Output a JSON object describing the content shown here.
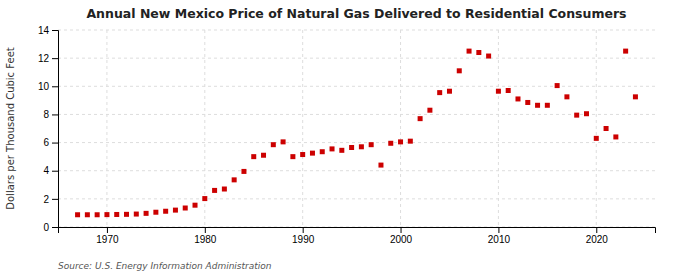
{
  "chart_data": {
    "type": "scatter",
    "title": "Annual New Mexico Price of Natural Gas Delivered to Residential Consumers",
    "ylabel": "Dollars per Thousand Cubic Feet",
    "annotations": [
      "Source: U.S. Energy Information Administration"
    ],
    "color": "#cc0000",
    "marker": "square",
    "grid": true,
    "xlim": [
      1965,
      2026
    ],
    "ylim": [
      0,
      14
    ],
    "xticks": [
      1970,
      1980,
      1990,
      2000,
      2010,
      2020
    ],
    "yticks": [
      0,
      2,
      4,
      6,
      8,
      10,
      12,
      14
    ],
    "x": [
      1967,
      1968,
      1969,
      1970,
      1971,
      1972,
      1973,
      1974,
      1975,
      1976,
      1977,
      1978,
      1979,
      1980,
      1981,
      1982,
      1983,
      1984,
      1985,
      1986,
      1987,
      1988,
      1989,
      1990,
      1991,
      1992,
      1993,
      1994,
      1995,
      1996,
      1997,
      1998,
      1999,
      2000,
      2001,
      2002,
      2003,
      2004,
      2005,
      2006,
      2007,
      2008,
      2009,
      2010,
      2011,
      2012,
      2013,
      2014,
      2015,
      2016,
      2017,
      2018,
      2019,
      2020,
      2021,
      2022,
      2023,
      2024
    ],
    "values": [
      0.87,
      0.87,
      0.87,
      0.88,
      0.89,
      0.9,
      0.92,
      0.97,
      1.05,
      1.12,
      1.2,
      1.35,
      1.55,
      2.02,
      2.6,
      2.7,
      3.35,
      3.95,
      5.0,
      5.1,
      5.85,
      6.05,
      5.0,
      5.15,
      5.25,
      5.35,
      5.55,
      5.45,
      5.65,
      5.7,
      5.85,
      4.4,
      5.95,
      6.05,
      6.1,
      7.7,
      8.3,
      9.55,
      9.65,
      11.1,
      12.5,
      12.4,
      12.15,
      9.65,
      9.7,
      9.1,
      8.85,
      8.65,
      8.65,
      10.05,
      9.25,
      7.95,
      8.05,
      6.3,
      7.0,
      6.4,
      12.5,
      9.25
    ]
  }
}
